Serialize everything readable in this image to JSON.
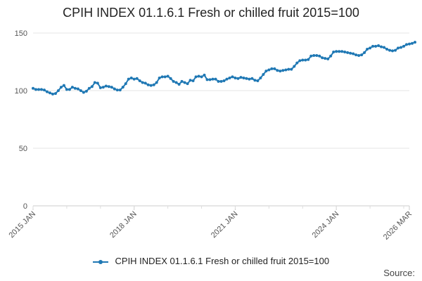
{
  "chart_data": {
    "type": "line",
    "title": "CPIH INDEX 01.1.6.1 Fresh or chilled fruit 2015=100",
    "xlabel": "",
    "ylabel": "",
    "ylim": [
      0,
      150
    ],
    "yticks": [
      0,
      50,
      100,
      150
    ],
    "xticks": [
      {
        "label": "2015 JAN",
        "date": "2015-01"
      },
      {
        "label": "2018 JAN",
        "date": "2018-01"
      },
      {
        "label": "2021 JAN",
        "date": "2021-01"
      },
      {
        "label": "2024 JAN",
        "date": "2024-01"
      },
      {
        "label": "2026 MAR",
        "date": "2026-03"
      }
    ],
    "x_start": "2015-01",
    "x_end": "2026-03",
    "grid": "horizontal",
    "legend_position": "bottom",
    "series": [
      {
        "name": "CPIH INDEX 01.1.6.1 Fresh or chilled fruit 2015=100",
        "color": "#1f78b4",
        "values": [
          102,
          101,
          101,
          101,
          100.5,
          99,
          98,
          97,
          97.5,
          100,
          103,
          104.5,
          101,
          101,
          103,
          102,
          101.5,
          100,
          98.5,
          99.5,
          102,
          103.5,
          107,
          106.5,
          102.5,
          103,
          104,
          103.5,
          103,
          101.5,
          100.5,
          100.5,
          103,
          106,
          110,
          111,
          110,
          110.5,
          108.5,
          107,
          106.5,
          105,
          104.5,
          105,
          107,
          111,
          112,
          112,
          112.5,
          110.5,
          108,
          107,
          105.5,
          108,
          107,
          106,
          109,
          108.5,
          112,
          112.5,
          112,
          113.5,
          109.5,
          109.5,
          110,
          110,
          108,
          108,
          108.5,
          110,
          111,
          112,
          111,
          110.5,
          111.5,
          111,
          110.5,
          110,
          110.5,
          109,
          108.5,
          111,
          114,
          117,
          118,
          119,
          119,
          117.5,
          117,
          117.5,
          118,
          118.5,
          118.5,
          121,
          124,
          126,
          126.5,
          126.5,
          127,
          130,
          130.5,
          130.5,
          130,
          128.5,
          128,
          127.5,
          130,
          133.5,
          134,
          134,
          134,
          133.5,
          133,
          132.5,
          132,
          131,
          130.5,
          131,
          133,
          136,
          137,
          138.5,
          138.5,
          139,
          138,
          137.5,
          136,
          135,
          134.5,
          135,
          137,
          137.5,
          138.5,
          140,
          140.5,
          141,
          142
        ]
      }
    ]
  },
  "legend": {
    "label": "CPIH INDEX 01.1.6.1 Fresh or chilled fruit 2015=100"
  },
  "footer": {
    "source_label": "Source:"
  }
}
